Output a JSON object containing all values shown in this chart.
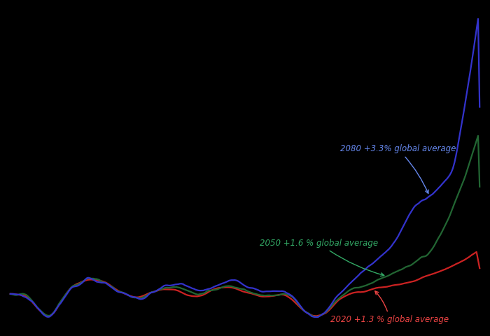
{
  "background_color": "#000000",
  "line_2080_color": "#3333cc",
  "line_2050_color": "#226633",
  "line_2020_color": "#cc2222",
  "label_2080": "2080 +3.3% global average",
  "label_2050": "2050 +1.6 % global average",
  "label_2020": "2020 +1.3 % global average",
  "label_2080_color": "#6688ee",
  "label_2050_color": "#33aa66",
  "label_2020_color": "#ee4444"
}
